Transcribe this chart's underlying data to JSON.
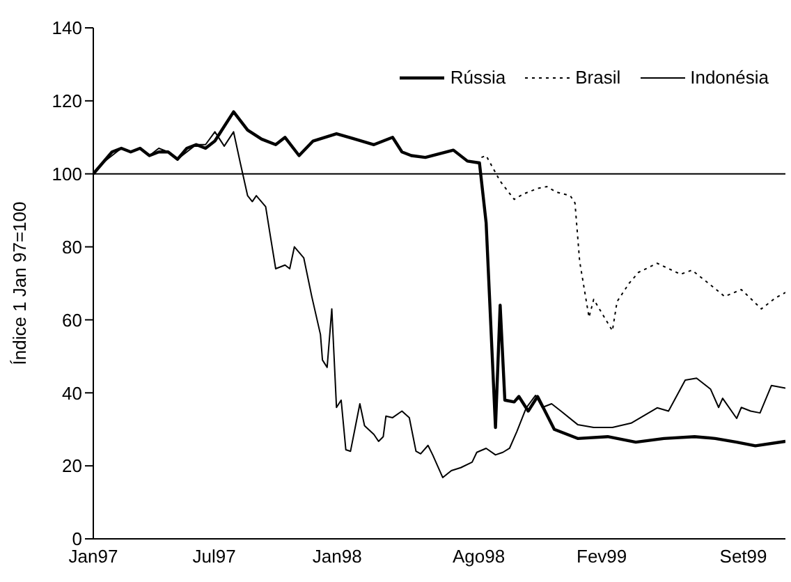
{
  "chart_data": {
    "type": "line",
    "ylabel": "Índice 1 Jan 97=100",
    "xlim": [
      "1997-01-01",
      "1999-11-03"
    ],
    "xticks": [
      {
        "value": "1997-01-01",
        "label": "Jan97"
      },
      {
        "value": "1997-07-01",
        "label": "Jul97"
      },
      {
        "value": "1998-01-01",
        "label": "Jan98"
      },
      {
        "value": "1998-08-01",
        "label": "Ago98"
      },
      {
        "value": "1999-02-01",
        "label": "Fev99"
      },
      {
        "value": "1999-09-01",
        "label": "Set99"
      }
    ],
    "ylim": [
      0,
      140
    ],
    "yticks": [
      0,
      20,
      40,
      60,
      80,
      100,
      120,
      140
    ],
    "legend": "top right",
    "marker": "none",
    "ref_lines": [
      {
        "axis": "y",
        "value": 100,
        "color": "#000000"
      }
    ],
    "series": [
      {
        "name": "Rússia",
        "color": "#000000",
        "line_style": "solid",
        "x": [
          "1997-01-01",
          "1997-01-15",
          "1997-01-29",
          "1997-02-12",
          "1997-02-26",
          "1997-03-12",
          "1997-03-26",
          "1997-04-09",
          "1997-04-23",
          "1997-05-07",
          "1997-05-21",
          "1997-06-04",
          "1997-06-18",
          "1997-07-02",
          "1997-07-16",
          "1997-07-30",
          "1997-08-20",
          "1997-09-10",
          "1997-10-01",
          "1997-10-15",
          "1997-11-05",
          "1997-11-26",
          "1997-12-31",
          "1998-01-28",
          "1998-02-25",
          "1998-03-25",
          "1998-04-08",
          "1998-04-22",
          "1998-05-13",
          "1998-06-03",
          "1998-06-24",
          "1998-07-15",
          "1998-08-02",
          "1998-08-12",
          "1998-08-26",
          "1998-09-02",
          "1998-09-09",
          "1998-09-23",
          "1998-09-30",
          "1998-10-14",
          "1998-10-28",
          "1998-11-22",
          "1998-12-27",
          "1999-02-10",
          "1999-03-24",
          "1999-05-05",
          "1999-06-20",
          "1999-07-21",
          "1999-08-22",
          "1999-09-19",
          "1999-11-03"
        ],
        "values": [
          100,
          103,
          106,
          107,
          106,
          107,
          105,
          106,
          106,
          104,
          107,
          108,
          107,
          109,
          113,
          117,
          112,
          109.5,
          108,
          110,
          105,
          109,
          111,
          109.5,
          108,
          110,
          106,
          105,
          104.5,
          105.5,
          106.5,
          103.5,
          103,
          86.6,
          30.5,
          64,
          38,
          37.5,
          39,
          35,
          39,
          30,
          27.5,
          28,
          26.5,
          27.5,
          28,
          27.5,
          26.5,
          25.5,
          26.7
        ]
      },
      {
        "name": "Brasil",
        "color": "#000000",
        "line_style": "dotted",
        "x": [
          "1998-08-05",
          "1998-08-12",
          "1998-09-02",
          "1998-09-23",
          "1998-10-07",
          "1998-10-28",
          "1998-11-11",
          "1998-11-25",
          "1998-12-16",
          "1998-12-23",
          "1998-12-30",
          "1999-01-13",
          "1999-01-20",
          "1999-02-17",
          "1999-02-24",
          "1999-03-14",
          "1999-03-28",
          "1999-04-25",
          "1999-05-30",
          "1999-06-16",
          "1999-07-11",
          "1999-08-04",
          "1999-08-29",
          "1999-09-28",
          "1999-10-19",
          "1999-11-03"
        ],
        "values": [
          104.5,
          105,
          98,
          93,
          94.5,
          96,
          96.5,
          95,
          94,
          92,
          76,
          60.7,
          65.6,
          57,
          65,
          70,
          73,
          75.5,
          72.5,
          73.6,
          70,
          66.4,
          68.3,
          63,
          66,
          67.5
        ]
      },
      {
        "name": "Indonésia",
        "color": "#000000",
        "line_style": "solid",
        "x": [
          "1997-01-01",
          "1997-01-15",
          "1997-01-29",
          "1997-02-12",
          "1997-02-26",
          "1997-03-12",
          "1997-03-26",
          "1997-04-09",
          "1997-04-23",
          "1997-05-07",
          "1997-05-21",
          "1997-06-04",
          "1997-06-18",
          "1997-07-02",
          "1997-07-16",
          "1997-07-30",
          "1997-08-09",
          "1997-08-20",
          "1997-08-27",
          "1997-09-02",
          "1997-09-16",
          "1997-09-23",
          "1997-10-01",
          "1997-10-15",
          "1997-10-22",
          "1997-10-29",
          "1997-11-12",
          "1997-11-24",
          "1997-12-07",
          "1997-12-10",
          "1997-12-17",
          "1997-12-24",
          "1997-12-31",
          "1998-01-07",
          "1998-01-14",
          "1998-01-21",
          "1998-02-04",
          "1998-02-11",
          "1998-02-25",
          "1998-03-04",
          "1998-03-11",
          "1998-03-15",
          "1998-03-25",
          "1998-04-08",
          "1998-04-19",
          "1998-04-29",
          "1998-05-06",
          "1998-05-17",
          "1998-05-24",
          "1998-06-08",
          "1998-06-21",
          "1998-07-05",
          "1998-07-22",
          "1998-07-29",
          "1998-08-12",
          "1998-08-26",
          "1998-09-06",
          "1998-09-16",
          "1998-09-27",
          "1998-10-11",
          "1998-10-25",
          "1998-11-04",
          "1998-11-18",
          "1998-12-02",
          "1998-12-27",
          "1999-01-20",
          "1999-02-17",
          "1999-03-17",
          "1999-04-25",
          "1999-05-12",
          "1999-06-06",
          "1999-06-23",
          "1999-07-14",
          "1999-07-26",
          "1999-08-01",
          "1999-08-22",
          "1999-08-29",
          "1999-09-12",
          "1999-09-26",
          "1999-10-13",
          "1999-11-03"
        ],
        "values": [
          100,
          103,
          105,
          107,
          106,
          107,
          105,
          107,
          106,
          104,
          106,
          108,
          108,
          111.5,
          107.6,
          111.5,
          103,
          94,
          92.4,
          94,
          91,
          83,
          74,
          75,
          74,
          80,
          77,
          66.4,
          56,
          49,
          47,
          63,
          36,
          38,
          24.4,
          24,
          37,
          31,
          28.6,
          26.7,
          28,
          33.6,
          33.2,
          35,
          33.2,
          24,
          23.3,
          25.6,
          23,
          16.8,
          18.7,
          19.5,
          21,
          23.7,
          24.8,
          23,
          23.7,
          24.8,
          29.4,
          35.9,
          39.3,
          36,
          37,
          35,
          31.3,
          30.5,
          30.5,
          31.7,
          35.9,
          35,
          43.5,
          44,
          41,
          36,
          38.5,
          33,
          36,
          35,
          34.5,
          42,
          41.3
        ]
      }
    ]
  }
}
